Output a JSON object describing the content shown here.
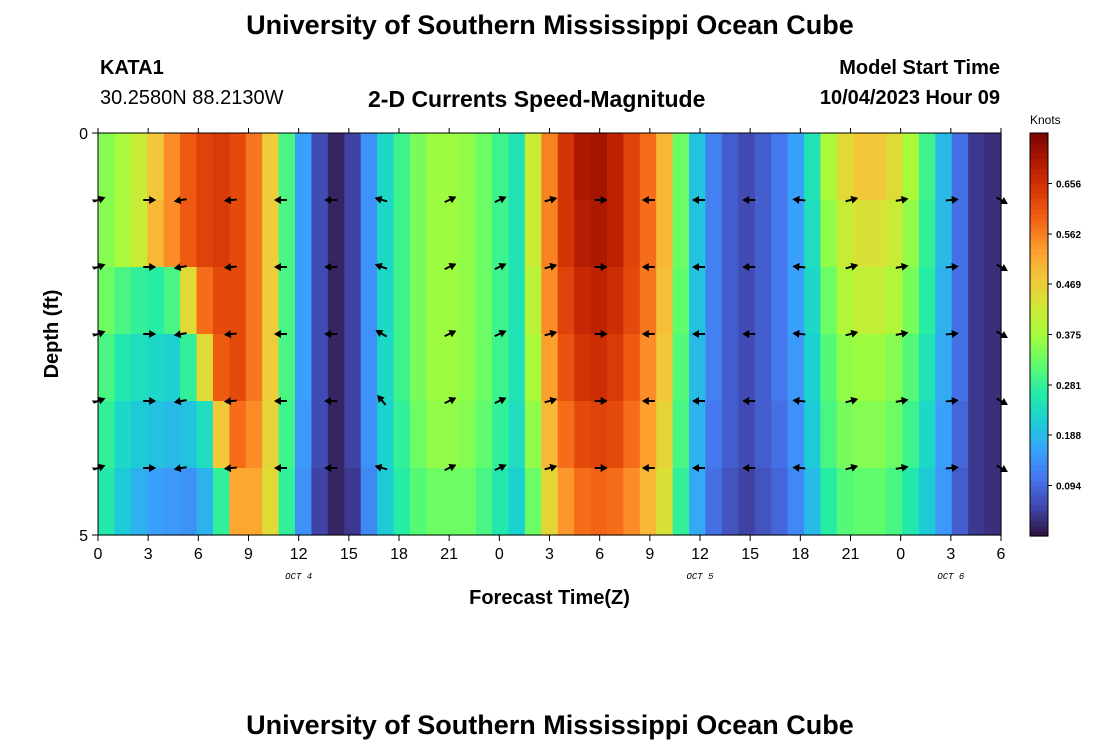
{
  "header": {
    "title": "University of Southern Mississippi Ocean Cube",
    "station_id": "KATA1",
    "station_coords": "30.2580N  88.2130W",
    "chart_title": "2-D Currents Speed-Magnitude",
    "model_start_label": "Model Start Time",
    "model_start_value": "10/04/2023 Hour 09"
  },
  "footer": {
    "title": "University of Southern Mississippi Ocean Cube"
  },
  "chart_data": {
    "type": "heatmap",
    "title": "2-D Currents Speed-Magnitude",
    "xlabel": "Forecast Time(Z)",
    "ylabel": "Depth (ft)",
    "x_hours": [
      0,
      3,
      6,
      9,
      12,
      15,
      18,
      21,
      24,
      27,
      30,
      33,
      36,
      39,
      42,
      45,
      48,
      51,
      54
    ],
    "x_tick_labels": [
      "0",
      "3",
      "6",
      "9",
      "12",
      "15",
      "18",
      "21",
      "0",
      "3",
      "6",
      "9",
      "12",
      "15",
      "18",
      "21",
      "0",
      "3",
      "6"
    ],
    "date_labels": [
      {
        "hour": 12,
        "label": "OCT 4"
      },
      {
        "hour": 36,
        "label": "OCT 5"
      },
      {
        "hour": 51,
        "label": "OCT 6"
      }
    ],
    "ylim": [
      0,
      5
    ],
    "y_tick_labels": [
      "0",
      "5"
    ],
    "colorbar_label": "Knots",
    "colorbar_ticks": [
      0.094,
      0.188,
      0.281,
      0.375,
      0.469,
      0.562,
      0.656
    ],
    "colorbar_range": [
      0.0,
      0.75
    ],
    "depth_rows": [
      {
        "speeds": [
          0.35,
          0.38,
          0.42,
          0.48,
          0.55,
          0.6,
          0.63,
          0.64,
          0.62,
          0.57,
          0.47,
          0.3,
          0.16,
          0.06,
          0.02,
          0.05,
          0.14,
          0.23,
          0.29,
          0.34,
          0.37,
          0.37,
          0.36,
          0.33,
          0.29,
          0.25,
          0.42,
          0.56,
          0.65,
          0.7,
          0.71,
          0.68,
          0.63,
          0.58,
          0.5,
          0.33,
          0.2,
          0.12,
          0.08,
          0.06,
          0.08,
          0.11,
          0.16,
          0.25,
          0.38,
          0.45,
          0.48,
          0.48,
          0.45,
          0.38,
          0.29,
          0.19,
          0.1,
          0.04,
          0.03
        ]
      },
      {
        "speeds": [
          0.35,
          0.38,
          0.42,
          0.5,
          0.55,
          0.6,
          0.63,
          0.64,
          0.62,
          0.57,
          0.47,
          0.3,
          0.16,
          0.06,
          0.02,
          0.05,
          0.14,
          0.23,
          0.29,
          0.34,
          0.37,
          0.37,
          0.36,
          0.33,
          0.29,
          0.25,
          0.42,
          0.56,
          0.65,
          0.69,
          0.7,
          0.68,
          0.63,
          0.58,
          0.5,
          0.33,
          0.2,
          0.12,
          0.08,
          0.06,
          0.08,
          0.11,
          0.16,
          0.24,
          0.36,
          0.42,
          0.44,
          0.44,
          0.42,
          0.36,
          0.28,
          0.19,
          0.1,
          0.04,
          0.03
        ]
      },
      {
        "speeds": [
          0.33,
          0.3,
          0.28,
          0.27,
          0.3,
          0.45,
          0.58,
          0.62,
          0.62,
          0.57,
          0.47,
          0.3,
          0.16,
          0.06,
          0.02,
          0.05,
          0.14,
          0.23,
          0.29,
          0.34,
          0.37,
          0.37,
          0.36,
          0.33,
          0.29,
          0.25,
          0.4,
          0.55,
          0.63,
          0.67,
          0.68,
          0.66,
          0.62,
          0.57,
          0.49,
          0.32,
          0.2,
          0.12,
          0.08,
          0.06,
          0.08,
          0.11,
          0.16,
          0.23,
          0.33,
          0.39,
          0.41,
          0.41,
          0.39,
          0.34,
          0.27,
          0.18,
          0.1,
          0.04,
          0.03
        ]
      },
      {
        "speeds": [
          0.3,
          0.26,
          0.24,
          0.23,
          0.22,
          0.28,
          0.45,
          0.6,
          0.62,
          0.57,
          0.47,
          0.3,
          0.16,
          0.06,
          0.02,
          0.05,
          0.14,
          0.23,
          0.29,
          0.34,
          0.37,
          0.37,
          0.36,
          0.33,
          0.29,
          0.25,
          0.38,
          0.53,
          0.61,
          0.65,
          0.66,
          0.64,
          0.6,
          0.55,
          0.48,
          0.31,
          0.19,
          0.12,
          0.08,
          0.06,
          0.08,
          0.11,
          0.15,
          0.22,
          0.31,
          0.36,
          0.37,
          0.37,
          0.35,
          0.31,
          0.25,
          0.17,
          0.1,
          0.04,
          0.03
        ]
      },
      {
        "speeds": [
          0.28,
          0.23,
          0.21,
          0.2,
          0.19,
          0.2,
          0.24,
          0.48,
          0.58,
          0.55,
          0.46,
          0.29,
          0.15,
          0.06,
          0.02,
          0.05,
          0.14,
          0.22,
          0.28,
          0.33,
          0.36,
          0.36,
          0.35,
          0.32,
          0.28,
          0.24,
          0.36,
          0.5,
          0.58,
          0.62,
          0.63,
          0.62,
          0.58,
          0.53,
          0.46,
          0.3,
          0.18,
          0.11,
          0.08,
          0.06,
          0.08,
          0.1,
          0.14,
          0.21,
          0.3,
          0.34,
          0.35,
          0.35,
          0.33,
          0.29,
          0.23,
          0.16,
          0.09,
          0.04,
          0.03
        ]
      },
      {
        "speeds": [
          0.26,
          0.21,
          0.18,
          0.16,
          0.15,
          0.14,
          0.18,
          0.28,
          0.52,
          0.52,
          0.45,
          0.28,
          0.14,
          0.05,
          0.02,
          0.04,
          0.13,
          0.21,
          0.27,
          0.31,
          0.33,
          0.33,
          0.33,
          0.3,
          0.26,
          0.22,
          0.33,
          0.46,
          0.54,
          0.58,
          0.59,
          0.58,
          0.55,
          0.5,
          0.44,
          0.28,
          0.17,
          0.1,
          0.07,
          0.05,
          0.07,
          0.09,
          0.13,
          0.19,
          0.27,
          0.31,
          0.32,
          0.32,
          0.3,
          0.26,
          0.21,
          0.15,
          0.08,
          0.04,
          0.03
        ]
      }
    ],
    "arrow_hours": [
      0,
      3,
      5,
      8,
      11,
      14,
      17,
      21,
      24,
      27,
      30,
      33,
      36,
      39,
      42,
      45,
      48,
      51,
      54
    ],
    "arrow_rows": [
      {
        "depth_index": 1,
        "angles_deg": [
          20,
          0,
          190,
          185,
          180,
          180,
          165,
          25,
          25,
          15,
          0,
          180,
          180,
          180,
          175,
          15,
          10,
          5,
          330
        ]
      },
      {
        "depth_index": 2,
        "angles_deg": [
          20,
          0,
          190,
          185,
          180,
          180,
          160,
          25,
          25,
          15,
          0,
          180,
          180,
          180,
          175,
          15,
          10,
          5,
          330
        ]
      },
      {
        "depth_index": 3,
        "angles_deg": [
          20,
          0,
          190,
          185,
          180,
          180,
          150,
          25,
          25,
          15,
          0,
          180,
          180,
          180,
          175,
          15,
          10,
          5,
          330
        ]
      },
      {
        "depth_index": 4,
        "angles_deg": [
          20,
          0,
          190,
          185,
          180,
          180,
          130,
          25,
          25,
          15,
          0,
          180,
          180,
          180,
          175,
          15,
          10,
          5,
          330
        ]
      },
      {
        "depth_index": 5,
        "angles_deg": [
          20,
          0,
          190,
          185,
          180,
          180,
          165,
          25,
          25,
          15,
          0,
          180,
          180,
          180,
          175,
          15,
          10,
          5,
          330
        ]
      }
    ],
    "colormap": [
      "#30123b",
      "#4145ab",
      "#4675ed",
      "#39a2fc",
      "#1bcfd4",
      "#24eca6",
      "#61fc6c",
      "#a4fc3b",
      "#d1e834",
      "#f3c63a",
      "#fe9b2d",
      "#f36315",
      "#d93806",
      "#b11901",
      "#7a0402"
    ]
  }
}
